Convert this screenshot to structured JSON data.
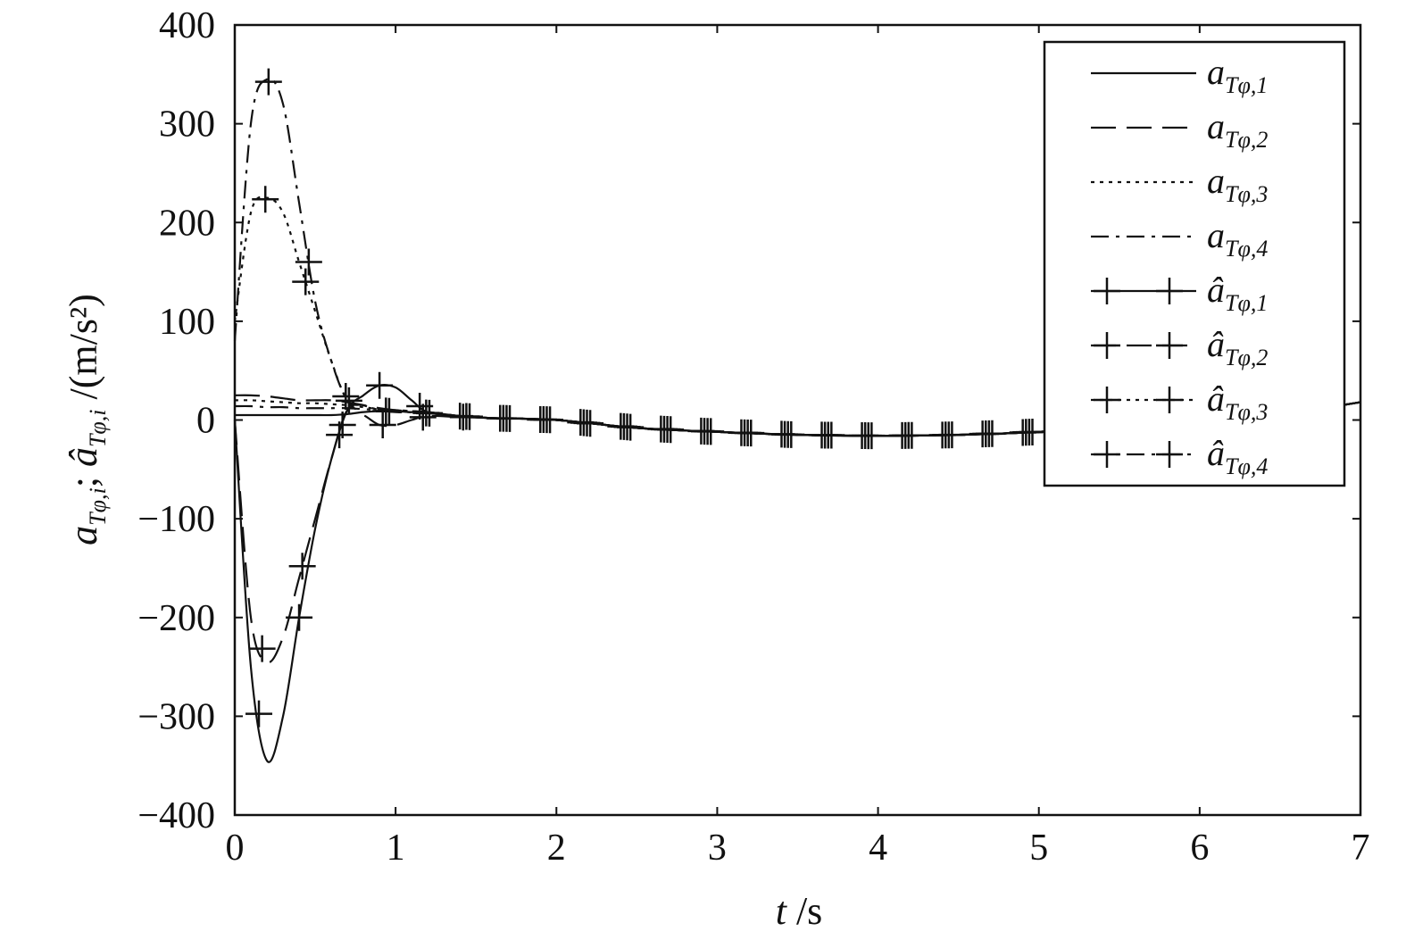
{
  "chart_data": {
    "type": "line",
    "xlabel": {
      "var": "t",
      "unit": " /s"
    },
    "ylabel": {
      "main1": "a",
      "sub1": "Tφ,i",
      "sep": "; ",
      "main2": "â",
      "sub2": "Tφ,i",
      "unit": " /(m/s²)"
    },
    "xlim": [
      0,
      7
    ],
    "ylim": [
      -400,
      400
    ],
    "xticks": [
      0,
      1,
      2,
      3,
      4,
      5,
      6,
      7
    ],
    "yticks": [
      400,
      300,
      200,
      100,
      0,
      -100,
      -200,
      -300,
      -400
    ],
    "ytick_labels": [
      "400",
      "300",
      "200",
      "100",
      "0",
      "−100",
      "−200",
      "−300",
      "−400"
    ],
    "grid": false,
    "legend_position": "top-right",
    "x": [
      0,
      0.1,
      0.2,
      0.3,
      0.4,
      0.5,
      0.6,
      0.7,
      0.8,
      0.9,
      1.0,
      1.1,
      1.2,
      1.4,
      1.6,
      2.0,
      2.5,
      3.0,
      3.5,
      4.0,
      4.5,
      5.0,
      5.5,
      6.0,
      6.5,
      7.0
    ],
    "series": [
      {
        "name": "a",
        "sub": "Tφ,1",
        "hat": false,
        "style": "solid",
        "markers": false,
        "values": [
          5,
          5,
          5,
          5,
          5,
          5,
          5,
          6,
          8,
          9,
          9,
          8,
          8,
          4,
          2,
          0,
          -8,
          -12,
          -15,
          -16,
          -15,
          -12,
          -6,
          0,
          6,
          18
        ]
      },
      {
        "name": "a",
        "sub": "Tφ,2",
        "hat": false,
        "style": "dashed",
        "markers": false,
        "values": [
          25,
          25,
          24,
          22,
          20,
          20,
          20,
          18,
          15,
          12,
          10,
          9,
          8,
          4,
          2,
          0,
          -8,
          -12,
          -15,
          -16,
          -15,
          -12,
          -6,
          0,
          6,
          18
        ]
      },
      {
        "name": "a",
        "sub": "Tφ,3",
        "hat": false,
        "style": "dotted",
        "markers": false,
        "values": [
          20,
          20,
          19,
          18,
          17,
          17,
          16,
          15,
          13,
          11,
          10,
          9,
          8,
          4,
          2,
          0,
          -8,
          -12,
          -15,
          -16,
          -15,
          -12,
          -6,
          0,
          6,
          18
        ]
      },
      {
        "name": "a",
        "sub": "Tφ,4",
        "hat": false,
        "style": "dashdot",
        "markers": false,
        "values": [
          14,
          14,
          13,
          13,
          12,
          12,
          12,
          12,
          11,
          10,
          10,
          9,
          8,
          4,
          2,
          0,
          -8,
          -12,
          -15,
          -16,
          -15,
          -12,
          -6,
          0,
          6,
          18
        ]
      },
      {
        "name": "â",
        "sub": "Tφ,1",
        "hat": true,
        "style": "solid",
        "markers": true,
        "values": [
          0,
          -250,
          -345,
          -300,
          -200,
          -110,
          -40,
          10,
          25,
          35,
          33,
          20,
          8,
          4,
          2,
          0,
          -8,
          -12,
          -15,
          -16,
          -15,
          -12,
          -6,
          0,
          6,
          18
        ]
      },
      {
        "name": "â",
        "sub": "Tφ,2",
        "hat": true,
        "style": "dashed",
        "markers": true,
        "values": [
          0,
          -200,
          -245,
          -220,
          -160,
          -100,
          -40,
          10,
          5,
          -5,
          -5,
          0,
          4,
          3,
          2,
          0,
          -8,
          -12,
          -15,
          -16,
          -15,
          -12,
          -6,
          0,
          6,
          18
        ]
      },
      {
        "name": "â",
        "sub": "Tφ,3",
        "hat": true,
        "style": "dotted",
        "markers": true,
        "values": [
          100,
          210,
          225,
          210,
          160,
          110,
          60,
          20,
          15,
          10,
          8,
          8,
          7,
          4,
          2,
          0,
          -8,
          -12,
          -15,
          -16,
          -15,
          -12,
          -6,
          0,
          6,
          18
        ]
      },
      {
        "name": "â",
        "sub": "Tφ,4",
        "hat": true,
        "style": "dashdot",
        "markers": true,
        "values": [
          80,
          300,
          345,
          320,
          220,
          120,
          60,
          20,
          15,
          10,
          8,
          8,
          7,
          4,
          2,
          0,
          -8,
          -12,
          -15,
          -16,
          -15,
          -12,
          -6,
          0,
          6,
          18
        ]
      }
    ],
    "colors": {
      "line": "#111111",
      "background": "#ffffff"
    }
  }
}
